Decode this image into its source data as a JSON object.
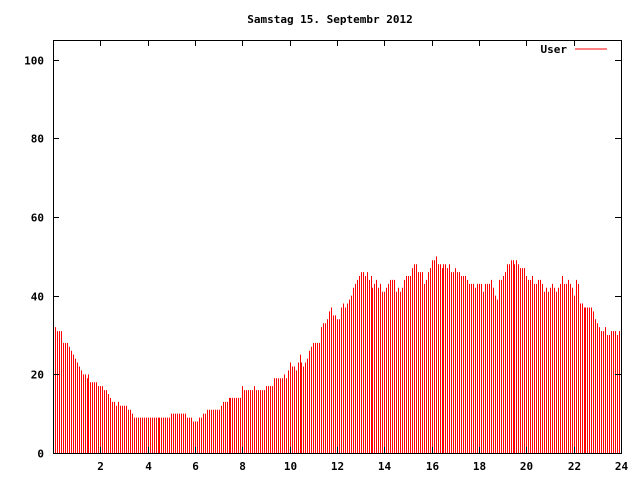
{
  "chart_data": {
    "type": "bar",
    "style": "impulses",
    "title": "Samstag 15. Septembr 2012",
    "xlabel": "",
    "ylabel": "",
    "xlim": [
      0,
      24
    ],
    "ylim": [
      0,
      105
    ],
    "xticks": [
      "2",
      "4",
      "6",
      "8",
      "10",
      "12",
      "14",
      "16",
      "18",
      "20",
      "22",
      "24"
    ],
    "xtick_values": [
      2,
      4,
      6,
      8,
      10,
      12,
      14,
      16,
      18,
      20,
      22,
      24
    ],
    "yticks": [
      "0",
      "20",
      "40",
      "60",
      "80",
      "100"
    ],
    "ytick_values": [
      0,
      20,
      40,
      60,
      80,
      100
    ],
    "grid": false,
    "legend": {
      "position": "top-right",
      "entries": [
        "User"
      ]
    },
    "x_step_hours": 0.0833333,
    "series": [
      {
        "name": "User",
        "color": "#ff0000",
        "values": [
          32,
          32,
          31,
          31,
          31,
          28,
          28,
          28,
          27,
          26,
          25,
          24,
          23,
          22,
          21,
          20,
          20,
          19,
          20,
          18,
          18,
          18,
          18,
          17,
          17,
          17,
          16,
          16,
          15,
          14,
          13,
          13,
          12,
          13,
          12,
          12,
          12,
          12,
          11,
          11,
          10,
          9,
          9,
          9,
          9,
          9,
          9,
          9,
          9,
          9,
          9,
          9,
          9,
          9,
          9,
          9,
          9,
          9,
          9,
          9,
          10,
          10,
          10,
          10,
          10,
          10,
          10,
          10,
          9,
          9,
          9,
          8,
          8,
          8,
          9,
          9,
          10,
          10,
          11,
          11,
          11,
          11,
          11,
          11,
          11,
          12,
          13,
          13,
          13,
          14,
          14,
          14,
          14,
          14,
          14,
          14,
          17,
          16,
          16,
          16,
          16,
          16,
          17,
          16,
          16,
          16,
          16,
          16,
          17,
          17,
          17,
          17,
          19,
          19,
          19,
          19,
          19,
          20,
          19,
          21,
          23,
          22,
          22,
          21,
          23,
          25,
          23,
          22,
          23,
          24,
          26,
          27,
          28,
          28,
          28,
          28,
          32,
          33,
          33,
          34,
          36,
          37,
          35,
          35,
          34,
          34,
          37,
          38,
          37,
          38,
          39,
          40,
          42,
          43,
          44,
          45,
          46,
          46,
          45,
          46,
          44,
          45,
          42,
          43,
          44,
          42,
          43,
          41,
          41,
          42,
          43,
          44,
          44,
          44,
          41,
          42,
          41,
          42,
          44,
          45,
          45,
          45,
          47,
          48,
          48,
          46,
          46,
          46,
          43,
          44,
          46,
          47,
          49,
          49,
          50,
          48,
          48,
          47,
          48,
          48,
          47,
          48,
          46,
          46,
          47,
          46,
          46,
          45,
          45,
          45,
          44,
          43,
          43,
          43,
          42,
          43,
          43,
          43,
          41,
          43,
          43,
          43,
          44,
          42,
          40,
          39,
          44,
          44,
          45,
          46,
          48,
          48,
          49,
          49,
          48,
          49,
          48,
          47,
          47,
          47,
          45,
          44,
          44,
          45,
          43,
          43,
          44,
          44,
          43,
          41,
          42,
          41,
          42,
          43,
          42,
          41,
          42,
          43,
          45,
          43,
          43,
          44,
          43,
          42,
          40,
          44,
          43,
          38,
          38,
          37,
          37,
          37,
          37,
          37,
          36,
          34,
          33,
          32,
          31,
          31,
          32,
          30,
          30,
          31,
          31,
          31,
          30,
          31
        ]
      }
    ]
  }
}
